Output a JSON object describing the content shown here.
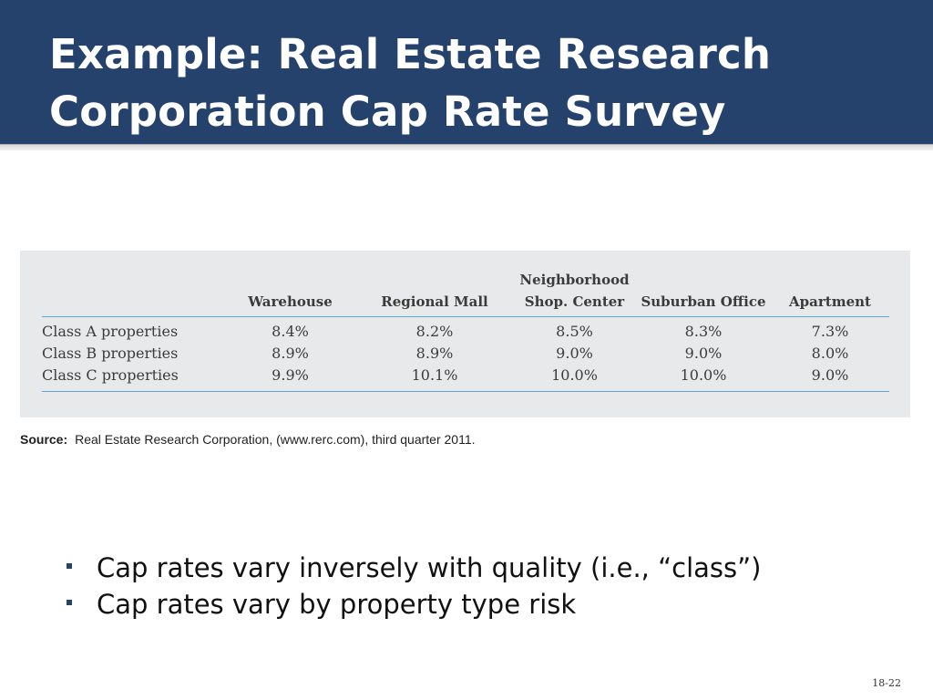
{
  "slide": {
    "title_line1": "Example: Real Estate Research",
    "title_line2": "Corporation Cap Rate Survey",
    "number": "18-22",
    "colors": {
      "title_background": "#25426d",
      "table_background": "#e8e9ea",
      "table_rule": "#59a9dc"
    }
  },
  "table": {
    "columns": [
      "Warehouse",
      "Regional Mall",
      "Neighborhood Shop. Center",
      "Suburban Office",
      "Apartment"
    ],
    "column_header_lines": [
      [
        "Warehouse"
      ],
      [
        "Regional Mall"
      ],
      [
        "Neighborhood",
        "Shop. Center"
      ],
      [
        "Suburban Office"
      ],
      [
        "Apartment"
      ]
    ],
    "rows": [
      {
        "label": "Class A properties",
        "values": [
          "8.4%",
          "8.2%",
          "8.5%",
          "8.3%",
          "7.3%"
        ]
      },
      {
        "label": "Class B properties",
        "values": [
          "8.9%",
          "8.9%",
          "9.0%",
          "9.0%",
          "8.0%"
        ]
      },
      {
        "label": "Class C properties",
        "values": [
          "9.9%",
          "10.1%",
          "10.0%",
          "10.0%",
          "9.0%"
        ]
      }
    ]
  },
  "source": {
    "label": "Source:",
    "text": "Real Estate Research Corporation, (www.rerc.com), third quarter 2011."
  },
  "bullets": [
    "Cap rates vary inversely with quality (i.e., “class”)",
    "Cap rates vary by property type risk"
  ]
}
